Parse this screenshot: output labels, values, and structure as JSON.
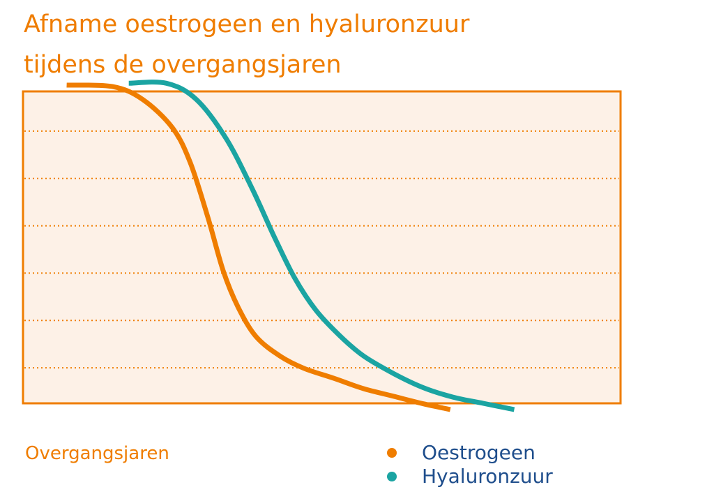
{
  "title_lines": [
    "Afname oestrogeen en hyaluronzuur",
    "tijdens de overgangsjaren"
  ],
  "chart_data": {
    "type": "line",
    "title": "Afname oestrogeen en hyaluronzuur tijdens de overgangsjaren",
    "xlabel": "Overgangsjaren",
    "ylabel": "",
    "x_ticks_visible": false,
    "y_ticks_visible": false,
    "xlim": [
      0,
      100
    ],
    "ylim": [
      0,
      7
    ],
    "grid": "horizontal-dotted",
    "gridlines": [
      1,
      2,
      3,
      4,
      5,
      6
    ],
    "background": "#fdf1e7",
    "frame_color": "#ef7d00",
    "legend_position": "bottom-right",
    "series": [
      {
        "name": "Oestrogeen",
        "color": "#ef7d00",
        "x": [
          7.3,
          15,
          20,
          25,
          28,
          31,
          33.5,
          36,
          39,
          43,
          47,
          52,
          57,
          62,
          67,
          71.5
        ],
        "y": [
          6.97,
          6.94,
          6.67,
          6.07,
          5.33,
          4.15,
          3.05,
          2.28,
          1.66,
          1.25,
          0.99,
          0.78,
          0.56,
          0.4,
          0.24,
          0.12
        ]
      },
      {
        "name": "Hyaluronzuur",
        "color": "#1ba4a2",
        "x": [
          17.7,
          24,
          29,
          34,
          38.4,
          42,
          45.5,
          49,
          53,
          57,
          62,
          67,
          72,
          77,
          82.2
        ],
        "y": [
          7.01,
          7.01,
          6.67,
          5.84,
          4.77,
          3.78,
          2.89,
          2.22,
          1.68,
          1.25,
          0.88,
          0.58,
          0.38,
          0.25,
          0.12
        ]
      }
    ]
  }
}
